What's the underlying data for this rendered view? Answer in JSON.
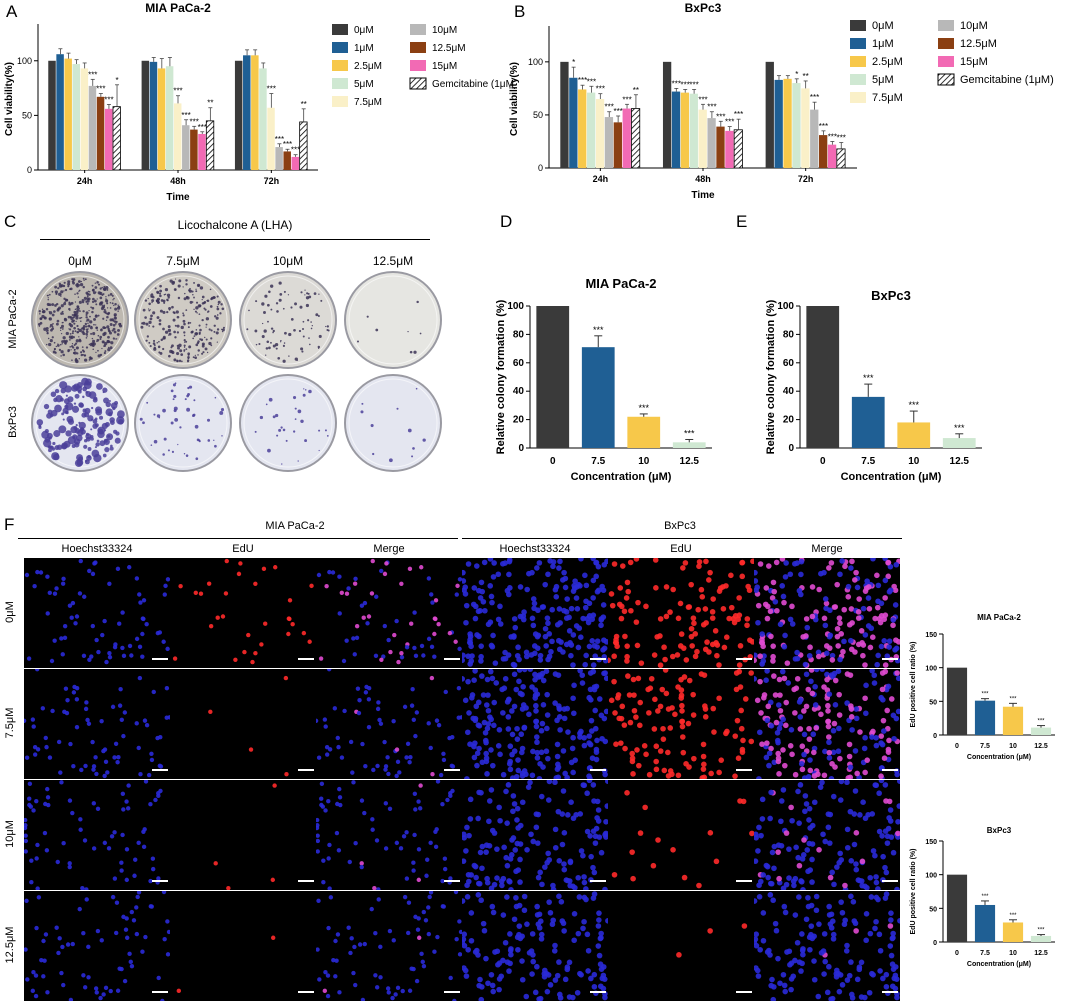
{
  "panels": {
    "A": "A",
    "B": "B",
    "C": "C",
    "D": "D",
    "E": "E",
    "F": "F"
  },
  "legend": {
    "entries": [
      {
        "label": "0μM",
        "color": "#3a3a3a",
        "hatch": false
      },
      {
        "label": "1μM",
        "color": "#1f5f94",
        "hatch": false
      },
      {
        "label": "2.5μM",
        "color": "#f7c84a",
        "hatch": false
      },
      {
        "label": "5μM",
        "color": "#cfe8d2",
        "hatch": false
      },
      {
        "label": "7.5μM",
        "color": "#faf0c8",
        "hatch": false
      },
      {
        "label": "10μM",
        "color": "#b8b8b8",
        "hatch": false
      },
      {
        "label": "12.5μM",
        "color": "#8b3f12",
        "hatch": false
      },
      {
        "label": "15μM",
        "color": "#f26ab4",
        "hatch": false
      },
      {
        "label": "Gemcitabine (1μM)",
        "color": "#ffffff",
        "hatch": true
      }
    ]
  },
  "chart_data": [
    {
      "id": "A",
      "type": "bar",
      "title": "MIA PaCa-2",
      "xlabel": "Time",
      "ylabel": "Cell viability(%)",
      "ylim": [
        0,
        130
      ],
      "yticks": [
        0,
        50,
        100
      ],
      "categories": [
        "24h",
        "48h",
        "72h"
      ],
      "series": [
        {
          "name": "0μM",
          "values": [
            100,
            100,
            100
          ],
          "err": [
            0,
            0,
            0
          ],
          "sig": [
            "",
            "",
            ""
          ]
        },
        {
          "name": "1μM",
          "values": [
            106,
            99,
            105
          ],
          "err": [
            5,
            4,
            5
          ],
          "sig": [
            "",
            "",
            ""
          ]
        },
        {
          "name": "2.5μM",
          "values": [
            102,
            93,
            105
          ],
          "err": [
            5,
            9,
            5
          ],
          "sig": [
            "",
            "",
            ""
          ]
        },
        {
          "name": "5μM",
          "values": [
            97,
            95,
            93
          ],
          "err": [
            4,
            8,
            5
          ],
          "sig": [
            "",
            "",
            ""
          ]
        },
        {
          "name": "7.5μM",
          "values": [
            93,
            61,
            57
          ],
          "err": [
            5,
            7,
            13
          ],
          "sig": [
            "",
            "***",
            "***"
          ]
        },
        {
          "name": "10μM",
          "values": [
            77,
            41,
            21
          ],
          "err": [
            6,
            5,
            3
          ],
          "sig": [
            "***",
            "***",
            "***"
          ]
        },
        {
          "name": "12.5μM",
          "values": [
            67,
            37,
            17
          ],
          "err": [
            3,
            3,
            2
          ],
          "sig": [
            "***",
            "***",
            "***"
          ]
        },
        {
          "name": "15μM",
          "values": [
            56,
            33,
            12
          ],
          "err": [
            4,
            2,
            2
          ],
          "sig": [
            "***",
            "***",
            "***"
          ]
        },
        {
          "name": "Gemcitabine (1μM)",
          "values": [
            58,
            45,
            44
          ],
          "err": [
            20,
            12,
            12
          ],
          "sig": [
            "*",
            "**",
            "**"
          ]
        }
      ]
    },
    {
      "id": "B",
      "type": "bar",
      "title": "BxPc3",
      "xlabel": "Time",
      "ylabel": "Cell viability(%)",
      "ylim": [
        0,
        130
      ],
      "yticks": [
        0,
        50,
        100
      ],
      "categories": [
        "24h",
        "48h",
        "72h"
      ],
      "series": [
        {
          "name": "0μM",
          "values": [
            100,
            100,
            100
          ],
          "err": [
            0,
            0,
            0
          ],
          "sig": [
            "",
            "",
            ""
          ]
        },
        {
          "name": "1μM",
          "values": [
            85,
            72,
            83
          ],
          "err": [
            10,
            3,
            4
          ],
          "sig": [
            "*",
            "***",
            ""
          ]
        },
        {
          "name": "2.5μM",
          "values": [
            74,
            71,
            84
          ],
          "err": [
            4,
            3,
            3
          ],
          "sig": [
            "***",
            "***",
            ""
          ]
        },
        {
          "name": "5μM",
          "values": [
            71,
            70,
            80
          ],
          "err": [
            6,
            4,
            4
          ],
          "sig": [
            "***",
            "***",
            "*"
          ]
        },
        {
          "name": "7.5μM",
          "values": [
            65,
            55,
            75
          ],
          "err": [
            5,
            5,
            7
          ],
          "sig": [
            "***",
            "***",
            "**"
          ]
        },
        {
          "name": "10μM",
          "values": [
            48,
            47,
            55
          ],
          "err": [
            5,
            6,
            7
          ],
          "sig": [
            "***",
            "***",
            "***"
          ]
        },
        {
          "name": "12.5μM",
          "values": [
            43,
            39,
            31
          ],
          "err": [
            6,
            5,
            4
          ],
          "sig": [
            "***",
            "***",
            "***"
          ]
        },
        {
          "name": "15μM",
          "values": [
            56,
            35,
            22
          ],
          "err": [
            4,
            4,
            3
          ],
          "sig": [
            "***",
            "***",
            "***"
          ]
        },
        {
          "name": "Gemcitabine (1μM)",
          "values": [
            56,
            36,
            18
          ],
          "err": [
            13,
            10,
            6
          ],
          "sig": [
            "**",
            "***",
            "***"
          ]
        }
      ]
    },
    {
      "id": "D",
      "type": "bar",
      "title": "MIA PaCa-2",
      "xlabel": "Concentration (μM)",
      "ylabel": "Relative colony formation (%)",
      "ylim": [
        0,
        100
      ],
      "yticks": [
        0,
        20,
        40,
        60,
        80,
        100
      ],
      "categories": [
        "0",
        "7.5",
        "10",
        "12.5"
      ],
      "values": [
        100,
        71,
        22,
        4
      ],
      "err": [
        0,
        8,
        2,
        2
      ],
      "sig": [
        "",
        "***",
        "***",
        "***"
      ],
      "colors": [
        "#3a3a3a",
        "#1f5f94",
        "#f7c84a",
        "#cfe8d2"
      ]
    },
    {
      "id": "E",
      "type": "bar",
      "title": "BxPc3",
      "xlabel": "Concentration (μM)",
      "ylabel": "Relative colony formation (%)",
      "ylim": [
        0,
        100
      ],
      "yticks": [
        0,
        20,
        40,
        60,
        80,
        100
      ],
      "categories": [
        "0",
        "7.5",
        "10",
        "12.5"
      ],
      "values": [
        100,
        36,
        18,
        7
      ],
      "err": [
        0,
        9,
        8,
        3
      ],
      "sig": [
        "",
        "***",
        "***",
        "***"
      ],
      "colors": [
        "#3a3a3a",
        "#1f5f94",
        "#f7c84a",
        "#cfe8d2"
      ]
    },
    {
      "id": "F1",
      "type": "bar",
      "title": "MIA  PaCa-2",
      "xlabel": "Concentration (μM)",
      "ylabel": "EdU positive cell ratio (%)",
      "ylim": [
        0,
        150
      ],
      "yticks": [
        0,
        50,
        100,
        150
      ],
      "categories": [
        "0",
        "7.5",
        "10",
        "12.5"
      ],
      "values": [
        100,
        51,
        42,
        11
      ],
      "err": [
        0,
        3,
        5,
        3
      ],
      "sig": [
        "",
        "***",
        "***",
        "***"
      ],
      "colors": [
        "#3a3a3a",
        "#1f5f94",
        "#f7c84a",
        "#cfe8d2"
      ]
    },
    {
      "id": "F2",
      "type": "bar",
      "title": "BxPc3",
      "xlabel": "Concentration (μM)",
      "ylabel": "EdU positive cell ratio (%)",
      "ylim": [
        0,
        150
      ],
      "yticks": [
        0,
        50,
        100,
        150
      ],
      "categories": [
        "0",
        "7.5",
        "10",
        "12.5"
      ],
      "values": [
        100,
        55,
        29,
        9
      ],
      "err": [
        0,
        6,
        4,
        2
      ],
      "sig": [
        "",
        "***",
        "***",
        "***"
      ],
      "colors": [
        "#3a3a3a",
        "#1f5f94",
        "#f7c84a",
        "#cfe8d2"
      ]
    }
  ],
  "colony": {
    "treatment": "Licochalcone A (LHA)",
    "concentrations": [
      "0μM",
      "7.5μM",
      "10μM",
      "12.5μM"
    ],
    "rows": [
      "MIA PaCa-2",
      "BxPc3"
    ],
    "density": {
      "MIA PaCa-2": [
        1.0,
        0.6,
        0.2,
        0.02
      ],
      "BxPc3": [
        1.0,
        0.3,
        0.18,
        0.07
      ]
    }
  },
  "edu": {
    "groups": [
      "MIA PaCa-2",
      "BxPc3"
    ],
    "channels": [
      "Hoechst33324",
      "EdU",
      "Merge"
    ],
    "rows": [
      "0μM",
      "7.5μM",
      "10μM",
      "12.5μM"
    ],
    "edu_fraction": {
      "MIA PaCa-2": [
        0.45,
        0.08,
        0.05,
        0.02
      ],
      "BxPc3": [
        0.6,
        0.5,
        0.12,
        0.02
      ]
    }
  }
}
